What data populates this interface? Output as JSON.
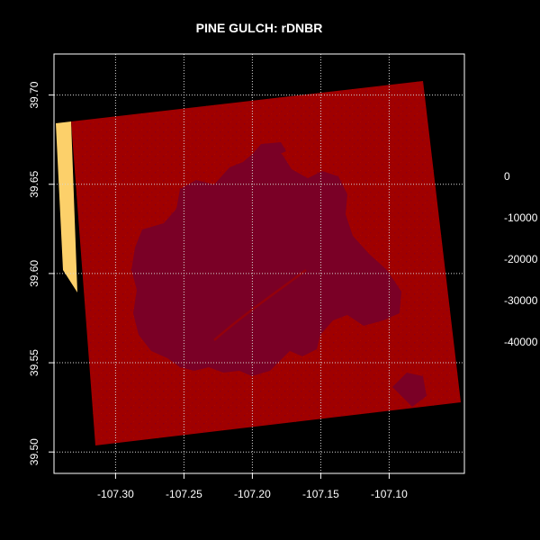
{
  "title": "PINE GULCH: rDNBR",
  "chart_data": {
    "type": "raster-map",
    "title": "PINE GULCH: rDNBR",
    "xlim": [
      -107.345,
      -107.045
    ],
    "ylim": [
      39.488,
      39.723
    ],
    "x_ticks": [
      {
        "value": -107.3,
        "label": "-107.30"
      },
      {
        "value": -107.25,
        "label": "-107.25"
      },
      {
        "value": -107.2,
        "label": "-107.20"
      },
      {
        "value": -107.15,
        "label": "-107.15"
      },
      {
        "value": -107.1,
        "label": "-107.10"
      }
    ],
    "y_ticks": [
      {
        "value": 39.5,
        "label": "39.50"
      },
      {
        "value": 39.55,
        "label": "39.55"
      },
      {
        "value": 39.6,
        "label": "39.60"
      },
      {
        "value": 39.65,
        "label": "39.65"
      },
      {
        "value": 39.7,
        "label": "39.70"
      }
    ],
    "grid": true,
    "grid_style": "dotted",
    "legend": {
      "placement": "right",
      "labels": [
        "0",
        "-10000",
        "-20000",
        "-30000",
        "-40000"
      ]
    },
    "colors": {
      "background": "#000000",
      "raster_main": "#a00000",
      "raster_burn_core": "#7a0026",
      "raster_edge_strip": "#fcd06a",
      "grid": "#d8d8d8",
      "box": "#ffffff"
    }
  }
}
